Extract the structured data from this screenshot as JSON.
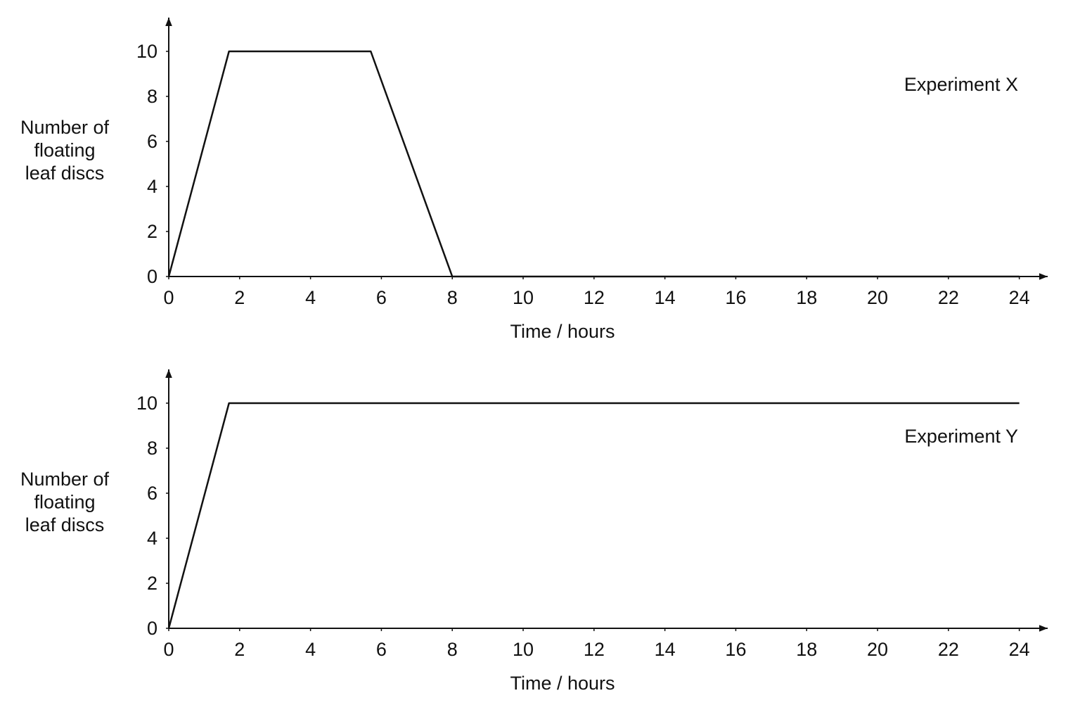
{
  "chart_data": [
    {
      "type": "line",
      "annotation": "Experiment X",
      "xlabel": "Time / hours",
      "ylabel": [
        "Number of",
        "floating",
        "leaf discs"
      ],
      "series": [
        {
          "color": "#111111",
          "x": [
            0,
            1.7,
            5.7,
            8,
            24
          ],
          "values": [
            0,
            10,
            10,
            0,
            0
          ]
        }
      ],
      "xlim": [
        0,
        24.8
      ],
      "xticks": [
        0,
        2,
        4,
        6,
        8,
        10,
        12,
        14,
        16,
        18,
        20,
        22,
        24
      ],
      "ylim": [
        0,
        11.5
      ],
      "yticks": [
        0,
        2,
        4,
        6,
        8,
        10
      ]
    },
    {
      "type": "line",
      "annotation": "Experiment Y",
      "xlabel": "Time / hours",
      "ylabel": [
        "Number of",
        "floating",
        "leaf discs"
      ],
      "series": [
        {
          "color": "#111111",
          "x": [
            0,
            1.7,
            24
          ],
          "values": [
            0,
            10,
            10
          ]
        }
      ],
      "xlim": [
        0,
        24.8
      ],
      "xticks": [
        0,
        2,
        4,
        6,
        8,
        10,
        12,
        14,
        16,
        18,
        20,
        22,
        24
      ],
      "ylim": [
        0,
        11.5
      ],
      "yticks": [
        0,
        2,
        4,
        6,
        8,
        10
      ]
    }
  ]
}
